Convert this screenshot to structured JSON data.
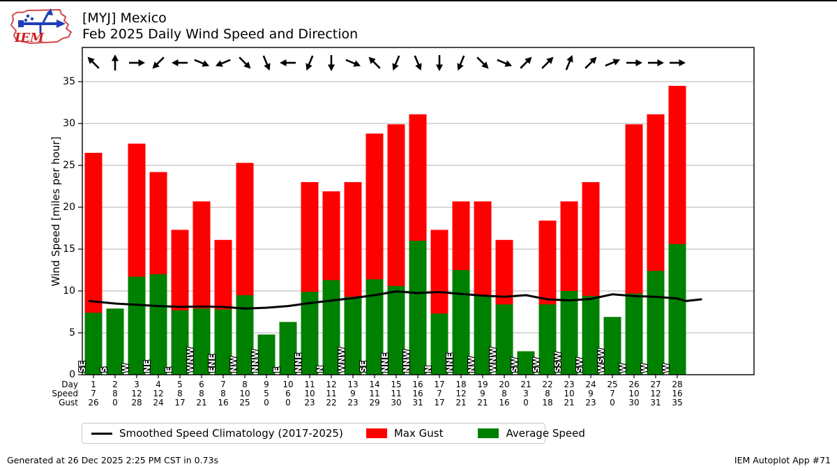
{
  "header": {
    "title_line1": "[MYJ] Mexico",
    "title_line2": "Feb 2025 Daily Wind Speed and Direction",
    "logo_text": "IEM"
  },
  "chart_data": {
    "type": "bar",
    "title": "Feb 2025 Daily Wind Speed and Direction",
    "station": "[MYJ] Mexico",
    "xlabel": "Day",
    "ylabel": "Wind Speed [miles per hour]",
    "ylim": [
      0,
      39
    ],
    "yticks": [
      0,
      5,
      10,
      15,
      20,
      25,
      30,
      35
    ],
    "grid": "horizontal",
    "days": [
      1,
      2,
      3,
      4,
      5,
      6,
      7,
      8,
      9,
      10,
      11,
      12,
      13,
      14,
      15,
      16,
      17,
      18,
      19,
      20,
      21,
      22,
      23,
      24,
      25,
      26,
      27,
      28
    ],
    "series": [
      {
        "name": "Max Gust",
        "type": "bar",
        "color": "#ff0000",
        "values": [
          26.5,
          0,
          27.6,
          24.2,
          17.3,
          20.7,
          16.1,
          25.3,
          0,
          0,
          23.0,
          21.9,
          23.0,
          28.8,
          29.9,
          31.1,
          17.3,
          20.7,
          20.7,
          16.1,
          0,
          18.4,
          20.7,
          23.0,
          0,
          29.9,
          31.1,
          34.5
        ]
      },
      {
        "name": "Average Speed",
        "type": "bar",
        "color": "#008000",
        "values": [
          7.4,
          7.9,
          11.7,
          12.0,
          7.7,
          7.9,
          7.8,
          9.5,
          4.8,
          6.3,
          9.9,
          11.3,
          9.3,
          11.4,
          10.6,
          16.0,
          7.3,
          12.5,
          9.4,
          8.4,
          2.8,
          8.4,
          10.0,
          9.4,
          6.9,
          9.7,
          12.4,
          15.6
        ]
      },
      {
        "name": "Smoothed Speed Climatology (2017-2025)",
        "type": "line",
        "color": "#000000",
        "points": [
          [
            0.8,
            8.8
          ],
          [
            1,
            8.75
          ],
          [
            2,
            8.5
          ],
          [
            3,
            8.35
          ],
          [
            4,
            8.2
          ],
          [
            5,
            8.1
          ],
          [
            6,
            8.15
          ],
          [
            7,
            8.1
          ],
          [
            8,
            7.9
          ],
          [
            9,
            8.0
          ],
          [
            10,
            8.2
          ],
          [
            11,
            8.55
          ],
          [
            12,
            8.85
          ],
          [
            13,
            9.15
          ],
          [
            14,
            9.5
          ],
          [
            15,
            9.95
          ],
          [
            16,
            9.75
          ],
          [
            17,
            9.87
          ],
          [
            18,
            9.65
          ],
          [
            19,
            9.45
          ],
          [
            20,
            9.3
          ],
          [
            21,
            9.5
          ],
          [
            22,
            9.0
          ],
          [
            23,
            8.87
          ],
          [
            24,
            9.05
          ],
          [
            25,
            9.6
          ],
          [
            26,
            9.4
          ],
          [
            27,
            9.3
          ],
          [
            28,
            9.1
          ],
          [
            28.4,
            8.8
          ],
          [
            29.1,
            9.0
          ]
        ]
      }
    ],
    "wind_directions": [
      "SE",
      "S",
      "W",
      "NE",
      "E",
      "WNW",
      "ENE",
      "NW",
      "NNW",
      "E",
      "NNE",
      "N",
      "WNW",
      "SE",
      "NNE",
      "NNW",
      "N",
      "NNE",
      "NW",
      "WNW",
      "SW",
      "SW",
      "SSW",
      "SW",
      "WSW",
      "W",
      "W",
      "W"
    ],
    "table_rows": [
      {
        "label": "Day",
        "values": [
          1,
          2,
          3,
          4,
          5,
          6,
          7,
          8,
          9,
          10,
          11,
          12,
          13,
          14,
          15,
          16,
          17,
          18,
          19,
          20,
          21,
          22,
          23,
          24,
          25,
          26,
          27,
          28
        ]
      },
      {
        "label": "Speed",
        "values": [
          7,
          8,
          12,
          12,
          8,
          8,
          8,
          10,
          5,
          6,
          10,
          11,
          9,
          11,
          11,
          16,
          7,
          12,
          9,
          8,
          3,
          8,
          10,
          9,
          7,
          10,
          12,
          16
        ]
      },
      {
        "label": "Gust",
        "values": [
          26,
          0,
          28,
          24,
          17,
          21,
          16,
          25,
          0,
          0,
          23,
          22,
          23,
          29,
          30,
          31,
          17,
          21,
          21,
          16,
          0,
          18,
          21,
          23,
          0,
          30,
          31,
          35
        ]
      }
    ],
    "colors": {
      "gust": "#ff0000",
      "avg": "#008000",
      "climatology": "#000000",
      "grid": "#b2b2b2",
      "frame": "#000000"
    }
  },
  "legend": {
    "items": [
      {
        "label": "Smoothed Speed Climatology (2017-2025)",
        "swatch": "line",
        "color": "#000000"
      },
      {
        "label": "Max Gust",
        "swatch": "patch",
        "color": "#ff0000"
      },
      {
        "label": "Average Speed",
        "swatch": "patch",
        "color": "#008000"
      }
    ]
  },
  "footer": {
    "left": "Generated at 26 Dec 2025 2:25 PM CST in 0.73s",
    "right": "IEM Autoplot App #71"
  }
}
